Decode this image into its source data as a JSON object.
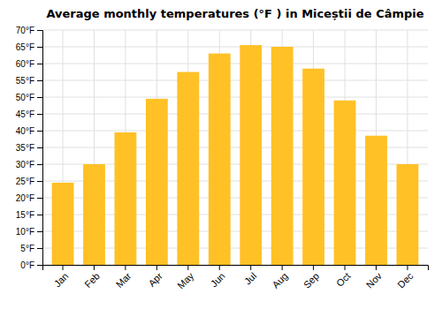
{
  "chart_data": {
    "type": "bar",
    "title": "Average monthly temperatures (°F ) in Miceștii de Câmpie",
    "categories": [
      "Jan",
      "Feb",
      "Mar",
      "Apr",
      "May",
      "Jun",
      "Jul",
      "Aug",
      "Sep",
      "Oct",
      "Nov",
      "Dec"
    ],
    "values": [
      24.5,
      30.0,
      39.5,
      49.5,
      57.5,
      63.0,
      65.5,
      65.0,
      58.5,
      49.0,
      38.5,
      30.0
    ],
    "color": "#FFC125",
    "ylim": [
      0,
      70
    ],
    "yticks": [
      {
        "value": 0,
        "label": "0°F"
      },
      {
        "value": 5,
        "label": "5°F"
      },
      {
        "value": 10,
        "label": "10°F"
      },
      {
        "value": 15,
        "label": "15°F"
      },
      {
        "value": 20,
        "label": "20°F"
      },
      {
        "value": 25,
        "label": "25°F"
      },
      {
        "value": 30,
        "label": "30°F"
      },
      {
        "value": 35,
        "label": "35°F"
      },
      {
        "value": 40,
        "label": "40°F"
      },
      {
        "value": 45,
        "label": "45°F"
      },
      {
        "value": 50,
        "label": "50°F"
      },
      {
        "value": 55,
        "label": "55°F"
      },
      {
        "value": 60,
        "label": "60°F"
      },
      {
        "value": 65,
        "label": "65°F"
      },
      {
        "value": 70,
        "label": "70°F"
      }
    ],
    "grid": true
  }
}
